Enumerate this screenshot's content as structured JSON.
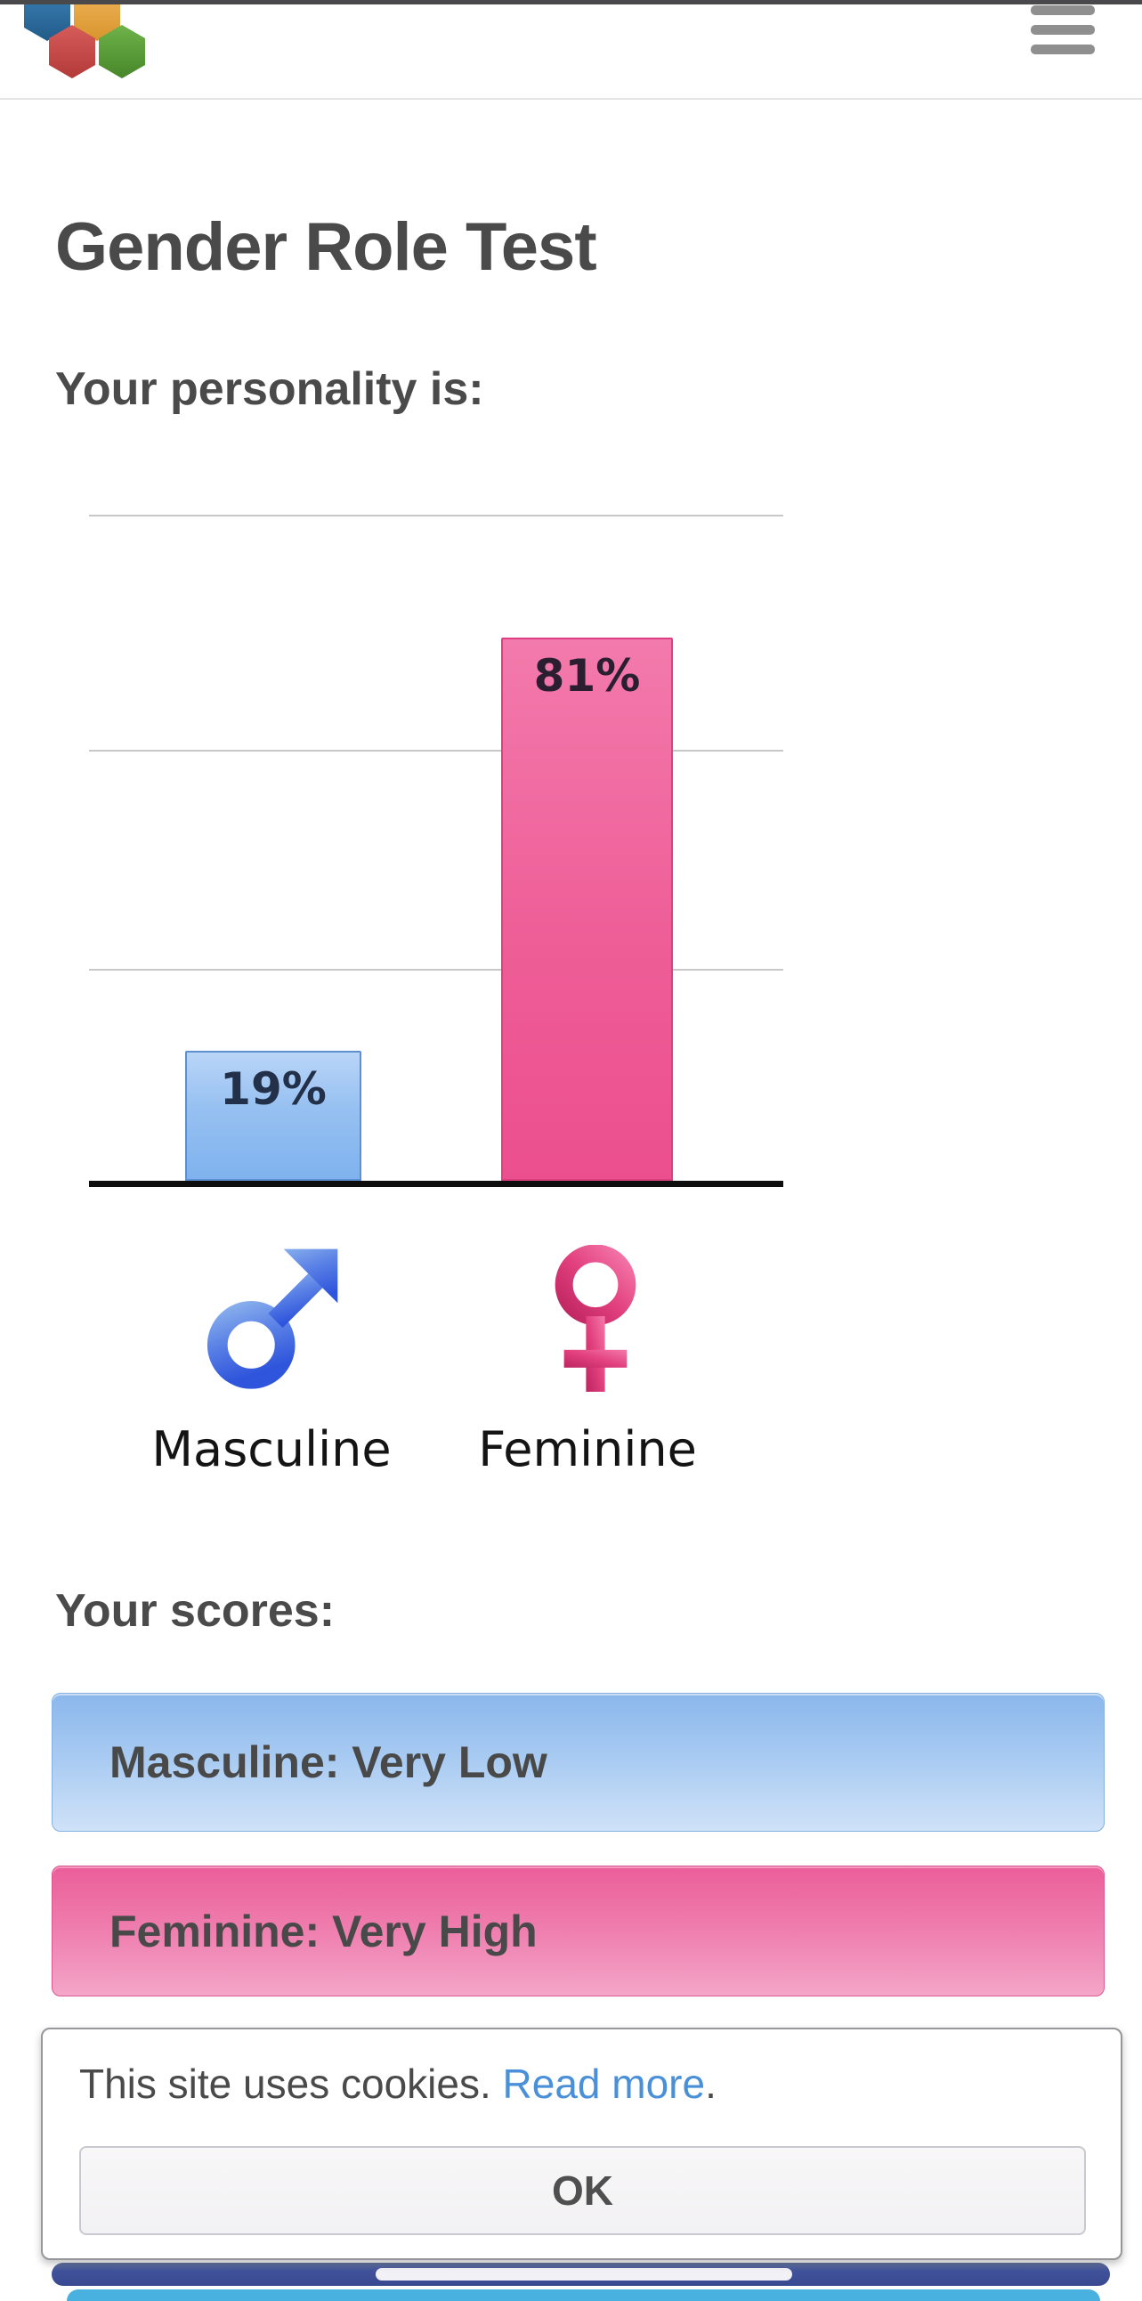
{
  "header": {
    "logo_icon": "hexagon-logo",
    "menu_icon": "hamburger-icon"
  },
  "page": {
    "title": "Gender Role Test",
    "personality_heading": "Your personality is:",
    "scores_heading": "Your scores:"
  },
  "chart_data": {
    "type": "bar",
    "categories": [
      "Masculine",
      "Feminine"
    ],
    "values": [
      19,
      81
    ],
    "value_labels": [
      "19%",
      "81%"
    ],
    "series_colors": [
      "#7fb2ee",
      "#ec4f8e"
    ],
    "ylim": [
      0,
      100
    ],
    "gridlines": "horizontal, light gray at thirds, black baseline at 0",
    "legend_position": "none",
    "category_icons": [
      "male-icon",
      "female-icon"
    ]
  },
  "scores": [
    {
      "label": "Masculine: Very Low",
      "color": "#8ab7ec"
    },
    {
      "label": "Feminine: Very High",
      "color": "#eb5e99"
    }
  ],
  "cookie_dialog": {
    "message": "This site uses cookies. ",
    "link_label": "Read more",
    "suffix": ".",
    "ok_label": "OK"
  },
  "colors": {
    "heading_gray": "#4a4a4a",
    "masculine_blue": "#7fb2ee",
    "feminine_pink": "#ec4f8e",
    "link_blue": "#4a90d9",
    "bottom_bar_dark_blue": "#3d4e98",
    "bottom_bar_light_blue": "#49b1e0",
    "hamburger_gray": "#8f8f8f"
  }
}
